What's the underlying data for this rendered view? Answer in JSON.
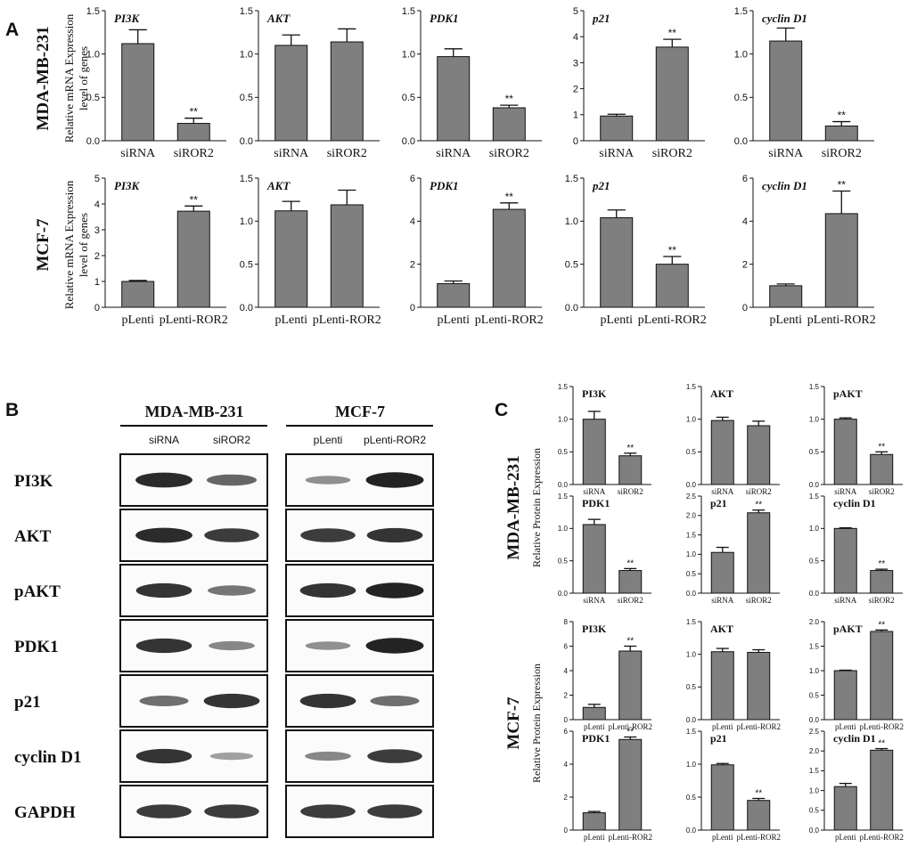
{
  "panels": {
    "A": "A",
    "B": "B",
    "C": "C"
  },
  "colors": {
    "bar": "#7f7f7f",
    "band": "#1a1a1a"
  },
  "row_labels": {
    "mda": "MDA-MB-231",
    "mcf": "MCF-7"
  },
  "y_labels": {
    "mrna_line1": "Relative mRNA Expression",
    "mrna_line2": "level of genes",
    "protein": "Relative Protein Expression"
  },
  "significance_mark": "**",
  "blot": {
    "group_headers": [
      "MDA-MB-231",
      "MCF-7"
    ],
    "lane_labels": [
      [
        "siRNA",
        "siROR2"
      ],
      [
        "pLenti",
        "pLenti-ROR2"
      ]
    ],
    "proteins": [
      "PI3K",
      "AKT",
      "pAKT",
      "PDK1",
      "p21",
      "cyclin D1",
      "GAPDH"
    ],
    "band_intensity": {
      "MDA-MB-231": [
        [
          0.9,
          0.55
        ],
        [
          0.9,
          0.8
        ],
        [
          0.85,
          0.45
        ],
        [
          0.85,
          0.35
        ],
        [
          0.5,
          0.85
        ],
        [
          0.85,
          0.2
        ],
        [
          0.8,
          0.8
        ]
      ],
      "MCF-7": [
        [
          0.3,
          0.95
        ],
        [
          0.8,
          0.85
        ],
        [
          0.85,
          0.95
        ],
        [
          0.3,
          0.95
        ],
        [
          0.85,
          0.5
        ],
        [
          0.35,
          0.8
        ],
        [
          0.8,
          0.8
        ]
      ]
    }
  },
  "chart_data": [
    {
      "panel": "A",
      "cell": "MDA-MB-231",
      "type": "bar",
      "title": "PI3K",
      "categories": [
        "siRNA",
        "siROR2"
      ],
      "values": [
        1.12,
        0.2
      ],
      "errors": [
        0.16,
        0.06
      ],
      "significance": [
        "",
        "**"
      ],
      "ylim": [
        0,
        1.5
      ],
      "yticks": [
        "0.0",
        "0.5",
        "1.0",
        "1.5"
      ],
      "ylabel": "Relative mRNA Expression level of genes"
    },
    {
      "panel": "A",
      "cell": "MDA-MB-231",
      "type": "bar",
      "title": "AKT",
      "categories": [
        "siRNA",
        "siROR2"
      ],
      "values": [
        1.1,
        1.14
      ],
      "errors": [
        0.12,
        0.15
      ],
      "significance": [
        "",
        ""
      ],
      "ylim": [
        0,
        1.5
      ],
      "yticks": [
        "0.0",
        "0.5",
        "1.0",
        "1.5"
      ]
    },
    {
      "panel": "A",
      "cell": "MDA-MB-231",
      "type": "bar",
      "title": "PDK1",
      "categories": [
        "siRNA",
        "siROR2"
      ],
      "values": [
        0.97,
        0.38
      ],
      "errors": [
        0.09,
        0.03
      ],
      "significance": [
        "",
        "**"
      ],
      "ylim": [
        0,
        1.5
      ],
      "yticks": [
        "0.0",
        "0.5",
        "1.0",
        "1.5"
      ]
    },
    {
      "panel": "A",
      "cell": "MDA-MB-231",
      "type": "bar",
      "title": "p21",
      "categories": [
        "siRNA",
        "siROR2"
      ],
      "values": [
        0.95,
        3.6
      ],
      "errors": [
        0.07,
        0.3
      ],
      "significance": [
        "",
        "**"
      ],
      "ylim": [
        0,
        5
      ],
      "yticks": [
        "0",
        "1",
        "2",
        "3",
        "4",
        "5"
      ]
    },
    {
      "panel": "A",
      "cell": "MDA-MB-231",
      "type": "bar",
      "title": "cyclin D1",
      "categories": [
        "siRNA",
        "siROR2"
      ],
      "values": [
        1.15,
        0.17
      ],
      "errors": [
        0.15,
        0.05
      ],
      "significance": [
        "",
        "**"
      ],
      "ylim": [
        0,
        1.5
      ],
      "yticks": [
        "0.0",
        "0.5",
        "1.0",
        "1.5"
      ]
    },
    {
      "panel": "A",
      "cell": "MCF-7",
      "type": "bar",
      "title": "PI3K",
      "categories": [
        "pLenti",
        "pLenti-ROR2"
      ],
      "values": [
        1.0,
        3.72
      ],
      "errors": [
        0.04,
        0.2
      ],
      "significance": [
        "",
        "**"
      ],
      "ylim": [
        0,
        5
      ],
      "yticks": [
        "0",
        "1",
        "2",
        "3",
        "4",
        "5"
      ],
      "ylabel": "Relative mRNA Expression level of genes"
    },
    {
      "panel": "A",
      "cell": "MCF-7",
      "type": "bar",
      "title": "AKT",
      "categories": [
        "pLenti",
        "pLenti-ROR2"
      ],
      "values": [
        1.12,
        1.19
      ],
      "errors": [
        0.11,
        0.17
      ],
      "significance": [
        "",
        ""
      ],
      "ylim": [
        0,
        1.5
      ],
      "yticks": [
        "0.0",
        "0.5",
        "1.0",
        "1.5"
      ]
    },
    {
      "panel": "A",
      "cell": "MCF-7",
      "type": "bar",
      "title": "PDK1",
      "categories": [
        "pLenti",
        "pLenti-ROR2"
      ],
      "values": [
        1.1,
        4.55
      ],
      "errors": [
        0.12,
        0.3
      ],
      "significance": [
        "",
        "**"
      ],
      "ylim": [
        0,
        6
      ],
      "yticks": [
        "0",
        "2",
        "4",
        "6"
      ]
    },
    {
      "panel": "A",
      "cell": "MCF-7",
      "type": "bar",
      "title": "p21",
      "categories": [
        "pLenti",
        "pLenti-ROR2"
      ],
      "values": [
        1.04,
        0.5
      ],
      "errors": [
        0.09,
        0.09
      ],
      "significance": [
        "",
        "**"
      ],
      "ylim": [
        0,
        1.5
      ],
      "yticks": [
        "0.0",
        "0.5",
        "1.0",
        "1.5"
      ]
    },
    {
      "panel": "A",
      "cell": "MCF-7",
      "type": "bar",
      "title": "cyclin D1",
      "categories": [
        "pLenti",
        "pLenti-ROR2"
      ],
      "values": [
        1.0,
        4.35
      ],
      "errors": [
        0.08,
        1.05
      ],
      "significance": [
        "",
        "**"
      ],
      "ylim": [
        0,
        6
      ],
      "yticks": [
        "0",
        "2",
        "4",
        "6"
      ]
    },
    {
      "panel": "C",
      "cell": "MDA-MB-231",
      "type": "bar",
      "title": "PI3K",
      "categories": [
        "siRNA",
        "siROR2"
      ],
      "values": [
        1.0,
        0.44
      ],
      "errors": [
        0.12,
        0.04
      ],
      "significance": [
        "",
        "**"
      ],
      "ylim": [
        0,
        1.5
      ],
      "yticks": [
        "0.0",
        "0.5",
        "1.0",
        "1.5"
      ],
      "ylabel": "Relative Protein Expression"
    },
    {
      "panel": "C",
      "cell": "MDA-MB-231",
      "type": "bar",
      "title": "AKT",
      "categories": [
        "siRNA",
        "siROR2"
      ],
      "values": [
        0.98,
        0.9
      ],
      "errors": [
        0.05,
        0.07
      ],
      "significance": [
        "",
        ""
      ],
      "ylim": [
        0,
        1.5
      ],
      "yticks": [
        "0.0",
        "0.5",
        "1.0",
        "1.5"
      ]
    },
    {
      "panel": "C",
      "cell": "MDA-MB-231",
      "type": "bar",
      "title": "pAKT",
      "categories": [
        "siRNA",
        "siROR2"
      ],
      "values": [
        1.0,
        0.46
      ],
      "errors": [
        0.02,
        0.04
      ],
      "significance": [
        "",
        "**"
      ],
      "ylim": [
        0,
        1.5
      ],
      "yticks": [
        "0.0",
        "0.5",
        "1.0",
        "1.5"
      ]
    },
    {
      "panel": "C",
      "cell": "MDA-MB-231",
      "type": "bar",
      "title": "PDK1",
      "categories": [
        "siRNA",
        "siROR2"
      ],
      "values": [
        1.06,
        0.35
      ],
      "errors": [
        0.08,
        0.03
      ],
      "significance": [
        "",
        "**"
      ],
      "ylim": [
        0,
        1.5
      ],
      "yticks": [
        "0.0",
        "0.5",
        "1.0",
        "1.5"
      ],
      "ylabel": "Relative Protein Expression"
    },
    {
      "panel": "C",
      "cell": "MDA-MB-231",
      "type": "bar",
      "title": "p21",
      "categories": [
        "siRNA",
        "siROR2"
      ],
      "values": [
        1.05,
        2.07
      ],
      "errors": [
        0.13,
        0.07
      ],
      "significance": [
        "",
        "**"
      ],
      "ylim": [
        0,
        2.5
      ],
      "yticks": [
        "0.0",
        "0.5",
        "1.0",
        "1.5",
        "2.0",
        "2.5"
      ]
    },
    {
      "panel": "C",
      "cell": "MDA-MB-231",
      "type": "bar",
      "title": "cyclin D1",
      "categories": [
        "siRNA",
        "siROR2"
      ],
      "values": [
        1.0,
        0.35
      ],
      "errors": [
        0.01,
        0.02
      ],
      "significance": [
        "",
        "**"
      ],
      "ylim": [
        0,
        1.5
      ],
      "yticks": [
        "0.0",
        "0.5",
        "1.0",
        "1.5"
      ]
    },
    {
      "panel": "C",
      "cell": "MCF-7",
      "type": "bar",
      "title": "PI3K",
      "categories": [
        "pLenti",
        "pLenti-ROR2"
      ],
      "values": [
        1.0,
        5.6
      ],
      "errors": [
        0.25,
        0.4
      ],
      "significance": [
        "",
        "**"
      ],
      "ylim": [
        0,
        8
      ],
      "yticks": [
        "0",
        "2",
        "4",
        "6",
        "8"
      ],
      "ylabel": "Relative Protein Expression"
    },
    {
      "panel": "C",
      "cell": "MCF-7",
      "type": "bar",
      "title": "AKT",
      "categories": [
        "pLenti",
        "pLenti-ROR2"
      ],
      "values": [
        1.04,
        1.03
      ],
      "errors": [
        0.05,
        0.04
      ],
      "significance": [
        "",
        ""
      ],
      "ylim": [
        0,
        1.5
      ],
      "yticks": [
        "0.0",
        "0.5",
        "1.0",
        "1.5"
      ]
    },
    {
      "panel": "C",
      "cell": "MCF-7",
      "type": "bar",
      "title": "pAKT",
      "categories": [
        "pLenti",
        "pLenti-ROR2"
      ],
      "values": [
        1.0,
        1.8
      ],
      "errors": [
        0.01,
        0.03
      ],
      "significance": [
        "",
        "**"
      ],
      "ylim": [
        0,
        2.0
      ],
      "yticks": [
        "0.0",
        "0.5",
        "1.0",
        "1.5",
        "2.0"
      ]
    },
    {
      "panel": "C",
      "cell": "MCF-7",
      "type": "bar",
      "title": "PDK1",
      "categories": [
        "pLenti",
        "pLenti-ROR2"
      ],
      "values": [
        1.05,
        5.5
      ],
      "errors": [
        0.08,
        0.15
      ],
      "significance": [
        "",
        "**"
      ],
      "ylim": [
        0,
        6
      ],
      "yticks": [
        "0",
        "2",
        "4",
        "6"
      ],
      "ylabel": "Relative Protein Expression"
    },
    {
      "panel": "C",
      "cell": "MCF-7",
      "type": "bar",
      "title": "p21",
      "categories": [
        "pLenti",
        "pLenti-ROR2"
      ],
      "values": [
        0.99,
        0.45
      ],
      "errors": [
        0.02,
        0.03
      ],
      "significance": [
        "",
        "**"
      ],
      "ylim": [
        0,
        1.5
      ],
      "yticks": [
        "0.0",
        "0.5",
        "1.0",
        "1.5"
      ]
    },
    {
      "panel": "C",
      "cell": "MCF-7",
      "type": "bar",
      "title": "cyclin D1",
      "categories": [
        "pLenti",
        "pLenti-ROR2"
      ],
      "values": [
        1.1,
        2.02
      ],
      "errors": [
        0.08,
        0.04
      ],
      "significance": [
        "",
        "**"
      ],
      "ylim": [
        0,
        2.5
      ],
      "yticks": [
        "0.0",
        "0.5",
        "1.0",
        "1.5",
        "2.0",
        "2.5"
      ]
    }
  ]
}
